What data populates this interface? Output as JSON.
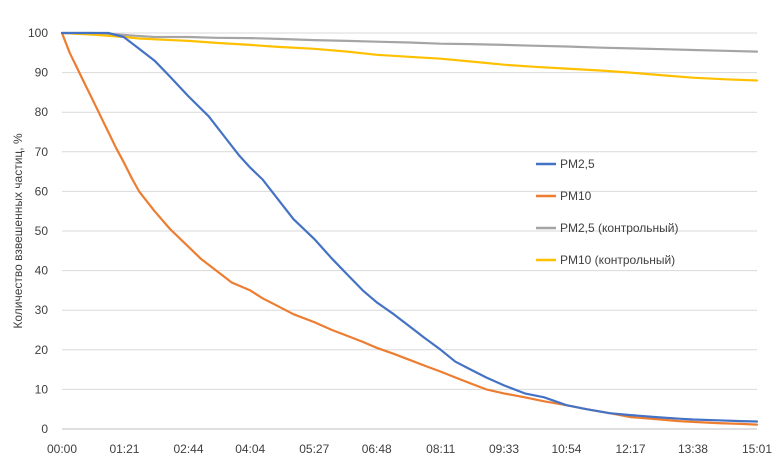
{
  "chart_data": {
    "type": "line",
    "ylabel": "Количество взвешенных частиц, %",
    "ylim": [
      0,
      100
    ],
    "yticks": [
      0,
      10,
      20,
      30,
      40,
      50,
      60,
      70,
      80,
      90,
      100
    ],
    "xlim": [
      0,
      901
    ],
    "xticks": [
      {
        "label": "00:00",
        "t": 0
      },
      {
        "label": "01:21",
        "t": 81
      },
      {
        "label": "02:44",
        "t": 164
      },
      {
        "label": "04:04",
        "t": 244
      },
      {
        "label": "05:27",
        "t": 327
      },
      {
        "label": "06:48",
        "t": 408
      },
      {
        "label": "08:11",
        "t": 491
      },
      {
        "label": "09:33",
        "t": 573
      },
      {
        "label": "10:54",
        "t": 654
      },
      {
        "label": "12:17",
        "t": 737
      },
      {
        "label": "13:38",
        "t": 818
      },
      {
        "label": "15:01",
        "t": 901
      }
    ],
    "legend_position": "right",
    "grid": "horizontal",
    "series": [
      {
        "name": "PM2,5",
        "color": "#4472C4",
        "points": [
          [
            0,
            100
          ],
          [
            30,
            100
          ],
          [
            60,
            100
          ],
          [
            80,
            99
          ],
          [
            100,
            96
          ],
          [
            120,
            93
          ],
          [
            140,
            89
          ],
          [
            164,
            84
          ],
          [
            190,
            79
          ],
          [
            210,
            74
          ],
          [
            230,
            69
          ],
          [
            244,
            66
          ],
          [
            260,
            63
          ],
          [
            280,
            58
          ],
          [
            300,
            53
          ],
          [
            327,
            48
          ],
          [
            350,
            43
          ],
          [
            370,
            39
          ],
          [
            390,
            35
          ],
          [
            408,
            32
          ],
          [
            430,
            29
          ],
          [
            450,
            26
          ],
          [
            470,
            23
          ],
          [
            491,
            20
          ],
          [
            510,
            17
          ],
          [
            530,
            15
          ],
          [
            550,
            13
          ],
          [
            573,
            11
          ],
          [
            600,
            9
          ],
          [
            625,
            8
          ],
          [
            654,
            6
          ],
          [
            680,
            5
          ],
          [
            710,
            4
          ],
          [
            737,
            3.5
          ],
          [
            770,
            3
          ],
          [
            800,
            2.6
          ],
          [
            818,
            2.4
          ],
          [
            850,
            2.2
          ],
          [
            880,
            2
          ],
          [
            901,
            1.9
          ]
        ]
      },
      {
        "name": "PM10",
        "color": "#ED7D31",
        "points": [
          [
            0,
            100
          ],
          [
            10,
            95
          ],
          [
            20,
            91
          ],
          [
            30,
            87
          ],
          [
            40,
            83
          ],
          [
            50,
            79
          ],
          [
            60,
            75
          ],
          [
            70,
            71
          ],
          [
            81,
            67
          ],
          [
            90,
            63.5
          ],
          [
            100,
            60
          ],
          [
            120,
            55
          ],
          [
            140,
            50.5
          ],
          [
            164,
            46
          ],
          [
            180,
            43
          ],
          [
            200,
            40
          ],
          [
            220,
            37
          ],
          [
            244,
            35
          ],
          [
            260,
            33
          ],
          [
            280,
            31
          ],
          [
            300,
            29
          ],
          [
            327,
            27
          ],
          [
            350,
            25
          ],
          [
            370,
            23.5
          ],
          [
            390,
            22
          ],
          [
            408,
            20.5
          ],
          [
            430,
            19
          ],
          [
            450,
            17.5
          ],
          [
            470,
            16
          ],
          [
            491,
            14.5
          ],
          [
            510,
            13
          ],
          [
            530,
            11.5
          ],
          [
            550,
            10
          ],
          [
            573,
            9
          ],
          [
            600,
            8
          ],
          [
            625,
            7
          ],
          [
            654,
            6
          ],
          [
            680,
            5
          ],
          [
            710,
            4
          ],
          [
            737,
            3
          ],
          [
            770,
            2.5
          ],
          [
            800,
            2
          ],
          [
            818,
            1.8
          ],
          [
            850,
            1.5
          ],
          [
            880,
            1.3
          ],
          [
            901,
            1.1
          ]
        ]
      },
      {
        "name": "PM2,5 (контрольный)",
        "color": "#A5A5A5",
        "points": [
          [
            0,
            100
          ],
          [
            40,
            100
          ],
          [
            81,
            99.5
          ],
          [
            120,
            99
          ],
          [
            164,
            99
          ],
          [
            200,
            98.8
          ],
          [
            244,
            98.7
          ],
          [
            280,
            98.5
          ],
          [
            327,
            98.2
          ],
          [
            370,
            98
          ],
          [
            408,
            97.8
          ],
          [
            450,
            97.6
          ],
          [
            491,
            97.3
          ],
          [
            530,
            97.2
          ],
          [
            573,
            97
          ],
          [
            610,
            96.8
          ],
          [
            654,
            96.6
          ],
          [
            700,
            96.3
          ],
          [
            737,
            96.1
          ],
          [
            780,
            95.9
          ],
          [
            818,
            95.7
          ],
          [
            860,
            95.5
          ],
          [
            901,
            95.3
          ]
        ]
      },
      {
        "name": "PM10 (контрольный)",
        "color": "#FFC000",
        "points": [
          [
            0,
            100
          ],
          [
            40,
            99.6
          ],
          [
            81,
            99
          ],
          [
            100,
            98.6
          ],
          [
            130,
            98.3
          ],
          [
            164,
            98
          ],
          [
            200,
            97.5
          ],
          [
            244,
            97
          ],
          [
            280,
            96.5
          ],
          [
            327,
            96
          ],
          [
            370,
            95.3
          ],
          [
            408,
            94.5
          ],
          [
            450,
            94
          ],
          [
            491,
            93.5
          ],
          [
            530,
            92.8
          ],
          [
            573,
            92
          ],
          [
            610,
            91.5
          ],
          [
            654,
            91
          ],
          [
            700,
            90.5
          ],
          [
            737,
            90
          ],
          [
            780,
            89.3
          ],
          [
            818,
            88.7
          ],
          [
            860,
            88.3
          ],
          [
            901,
            88
          ]
        ]
      }
    ]
  }
}
